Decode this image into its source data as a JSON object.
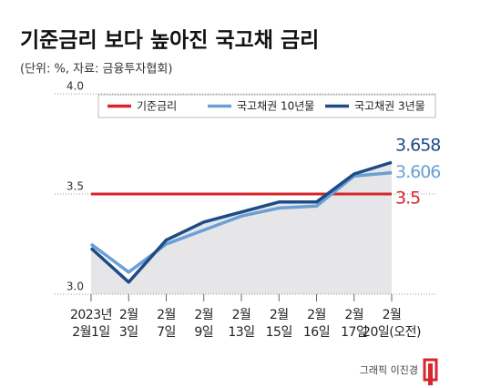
{
  "chart_data": {
    "type": "line",
    "title": "기준금리 보다 높아진 국고채 금리",
    "subtitle": "(단위: %, 자료: 금융투자협회)",
    "credit": "그래픽 이진경",
    "categories": [
      "2023년\n2월1일",
      "2월\n3일",
      "2월\n7일",
      "2월\n9일",
      "2월\n13일",
      "2월\n15일",
      "2월\n16일",
      "2월\n17일",
      "2월\n20일(오전)"
    ],
    "series": [
      {
        "name": "기준금리",
        "color": "#d7262c",
        "values": [
          3.5,
          3.5,
          3.5,
          3.5,
          3.5,
          3.5,
          3.5,
          3.5,
          3.5
        ]
      },
      {
        "name": "국고채권 10년물",
        "color": "#6b9fd6",
        "values": [
          3.25,
          3.11,
          3.25,
          3.32,
          3.39,
          3.43,
          3.44,
          3.59,
          3.606
        ]
      },
      {
        "name": "국고채권 3년물",
        "color": "#1d4c86",
        "values": [
          3.23,
          3.06,
          3.27,
          3.36,
          3.41,
          3.46,
          3.46,
          3.6,
          3.658
        ]
      }
    ],
    "ylim": [
      3.0,
      4.0
    ],
    "yticks": [
      {
        "value": 3.0,
        "label": "3.0"
      },
      3.5,
      {
        "value": 4.0,
        "label": "4.0"
      }
    ],
    "grid": true
  }
}
